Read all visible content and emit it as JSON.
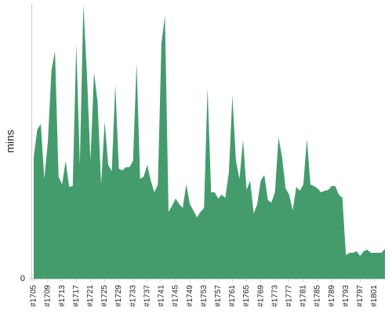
{
  "chart_data": {
    "type": "area",
    "y_label": "mins",
    "color": "#449c6c",
    "categories": [
      "#1705",
      null,
      null,
      null,
      "#1709",
      null,
      null,
      null,
      "#1713",
      null,
      null,
      null,
      "#1717",
      null,
      null,
      null,
      "#1721",
      null,
      null,
      null,
      "#1725",
      null,
      null,
      null,
      "#1729",
      null,
      null,
      null,
      "#1733",
      null,
      null,
      null,
      "#1737",
      null,
      null,
      null,
      "#1741",
      null,
      null,
      null,
      "#1745",
      null,
      null,
      null,
      "#1749",
      null,
      null,
      null,
      "#1753",
      null,
      null,
      null,
      "#1757",
      null,
      null,
      null,
      "#1761",
      null,
      null,
      null,
      "#1765",
      null,
      null,
      null,
      "#1769",
      null,
      null,
      null,
      "#1773",
      null,
      null,
      null,
      "#1777",
      null,
      null,
      null,
      "#1781",
      null,
      null,
      null,
      "#1785",
      null,
      null,
      null,
      "#1789",
      null,
      null,
      null,
      "#1793",
      null,
      null,
      null,
      "#1797",
      null,
      null,
      null,
      "#1801",
      null,
      null,
      null
    ],
    "values": [
      155,
      190,
      197,
      127,
      175,
      265,
      290,
      130,
      120,
      150,
      117,
      118,
      300,
      145,
      350,
      260,
      150,
      263,
      225,
      120,
      200,
      145,
      137,
      247,
      140,
      138,
      142,
      142,
      150,
      275,
      127,
      130,
      145,
      125,
      110,
      120,
      300,
      335,
      85,
      93,
      102,
      95,
      90,
      120,
      95,
      87,
      78,
      85,
      90,
      243,
      110,
      110,
      102,
      107,
      103,
      135,
      233,
      150,
      127,
      177,
      113,
      125,
      83,
      95,
      125,
      132,
      100,
      97,
      110,
      180,
      155,
      115,
      107,
      87,
      117,
      112,
      120,
      178,
      120,
      118,
      115,
      110,
      112,
      113,
      118,
      118,
      107,
      103,
      30,
      33,
      33,
      35,
      29,
      35,
      37,
      33,
      33,
      33,
      33,
      38
    ],
    "ylim": [
      0,
      350
    ],
    "yticks": [
      0
    ]
  }
}
